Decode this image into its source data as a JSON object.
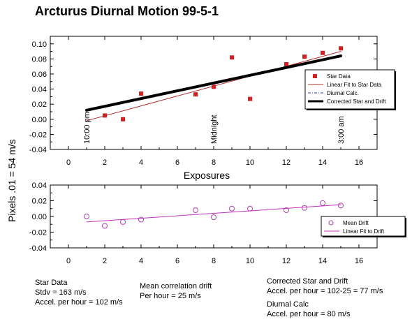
{
  "title": "Arcturus Diurnal Motion 99-5-1",
  "y_axis_label": "Pixels .01 = 54 m/s",
  "chart_data": [
    {
      "type": "scatter",
      "panel": "top",
      "xlabel": "Exposures",
      "xlim": [
        -1,
        17
      ],
      "ylim": [
        -0.04,
        0.11
      ],
      "x_ticks": [
        0,
        2,
        4,
        6,
        8,
        10,
        12,
        14,
        16
      ],
      "y_ticks": [
        -0.04,
        -0.02,
        0.0,
        0.02,
        0.04,
        0.06,
        0.08,
        0.1
      ],
      "y_tick_labels": [
        "-0.04",
        "-0.02",
        "0.00",
        "0.02",
        "0.04",
        "0.06",
        "0.08",
        "0.10"
      ],
      "series": [
        {
          "name": "Star Data",
          "kind": "points",
          "color": "#d42020",
          "x": [
            2,
            3,
            4,
            7,
            8,
            9,
            10,
            12,
            13,
            14,
            15
          ],
          "y": [
            0.005,
            0.0,
            0.034,
            0.033,
            0.043,
            0.082,
            0.027,
            0.073,
            0.083,
            0.088,
            0.094
          ]
        },
        {
          "name": "Linear Fit to Star Data",
          "kind": "line",
          "color": "#b03030",
          "width": 1,
          "x": [
            1,
            15
          ],
          "y": [
            -0.002,
            0.09
          ]
        },
        {
          "name": "Diurnal Calc.",
          "kind": "line",
          "color": "#2030a0",
          "width": 1,
          "dash": "4,2,1,2",
          "x": [
            1,
            15
          ],
          "y": [
            0.012,
            0.084
          ]
        },
        {
          "name": "Corrected Star and Drift",
          "kind": "line",
          "color": "#000000",
          "width": 4,
          "x": [
            1,
            15
          ],
          "y": [
            0.012,
            0.084
          ]
        }
      ],
      "annotations": [
        {
          "text": "10:00 pm",
          "x": 1
        },
        {
          "text": "Midnight",
          "x": 8
        },
        {
          "text": "3:00 am",
          "x": 15
        }
      ]
    },
    {
      "type": "scatter",
      "panel": "bottom",
      "xlim": [
        -1,
        17
      ],
      "ylim": [
        -0.04,
        0.04
      ],
      "x_ticks": [
        0,
        2,
        4,
        6,
        8,
        10,
        12,
        14,
        16
      ],
      "y_ticks": [
        -0.04,
        -0.02,
        0.0,
        0.02,
        0.04
      ],
      "y_tick_labels": [
        "-0.04",
        "-0.02",
        "0.00",
        "0.02",
        "0.04"
      ],
      "series": [
        {
          "name": "Mean Drift",
          "kind": "open-circles",
          "color": "#b040b0",
          "x": [
            1,
            2,
            3,
            4,
            7,
            8,
            9,
            10,
            12,
            13,
            14,
            15
          ],
          "y": [
            0.0,
            -0.012,
            -0.007,
            -0.004,
            0.008,
            -0.001,
            0.01,
            0.01,
            0.008,
            0.011,
            0.017,
            0.014
          ]
        },
        {
          "name": "Linear Fit to Drift",
          "kind": "line",
          "color": "#c030c0",
          "width": 1,
          "x": [
            1,
            15
          ],
          "y": [
            -0.007,
            0.015
          ]
        }
      ]
    }
  ],
  "notes": {
    "star_data": {
      "heading": "Star Data",
      "line1": "Stdv = 163 m/s",
      "line2": "Accel. per hour = 102 m/s"
    },
    "mean_drift": {
      "heading": "Mean correlation drift",
      "line1": "Per hour = 25 m/s"
    },
    "corrected": {
      "heading": "Corrected Star and Drift",
      "line1": "Accel. per hour = 102-25 = 77 m/s"
    },
    "diurnal": {
      "heading": "Diurnal Calc",
      "line1": "Accel. per hour = 80 m/s"
    }
  }
}
